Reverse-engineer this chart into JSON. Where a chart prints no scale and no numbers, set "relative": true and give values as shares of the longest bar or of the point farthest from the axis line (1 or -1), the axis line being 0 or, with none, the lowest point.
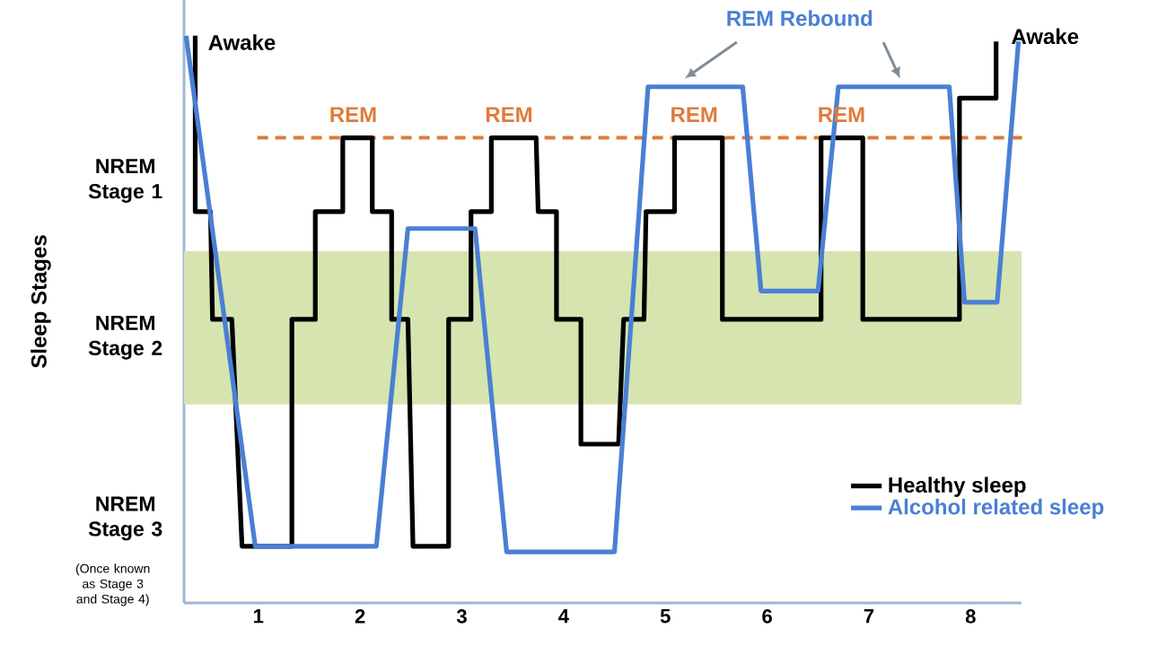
{
  "chart_data": {
    "type": "line",
    "relative": true,
    "xlim": [
      0.27,
      8.5
    ],
    "xticks": [
      1,
      2,
      3,
      4,
      5,
      6,
      7,
      8
    ],
    "legend": "bottom right",
    "series": [
      {
        "name": "Healthy sleep",
        "color": "#000000",
        "x": [
          0.38,
          0.38,
          0.53,
          0.55,
          0.74,
          0.84,
          1.33,
          1.33,
          1.56,
          1.56,
          1.83,
          1.83,
          2.12,
          2.12,
          2.31,
          2.31,
          2.47,
          2.52,
          2.87,
          2.87,
          3.09,
          3.09,
          3.29,
          3.29,
          3.73,
          3.75,
          3.93,
          3.93,
          4.17,
          4.17,
          4.54,
          4.59,
          4.79,
          4.81,
          5.09,
          5.09,
          5.56,
          5.56,
          6.53,
          6.53,
          6.94,
          6.94,
          7.89,
          7.89,
          8.25,
          8.25
        ],
        "values": [
          1.0,
          0.69,
          0.69,
          0.5,
          0.5,
          0.1,
          0.1,
          0.5,
          0.5,
          0.69,
          0.69,
          0.82,
          0.82,
          0.69,
          0.69,
          0.5,
          0.5,
          0.1,
          0.1,
          0.5,
          0.5,
          0.69,
          0.69,
          0.82,
          0.82,
          0.69,
          0.69,
          0.5,
          0.5,
          0.28,
          0.28,
          0.5,
          0.5,
          0.69,
          0.69,
          0.82,
          0.82,
          0.5,
          0.5,
          0.82,
          0.82,
          0.5,
          0.5,
          0.89,
          0.89,
          0.99
        ]
      },
      {
        "name": "Alcohol related sleep",
        "color": "#4a7fd4",
        "x": [
          0.29,
          0.97,
          2.16,
          2.47,
          3.13,
          3.44,
          4.5,
          4.83,
          5.76,
          5.94,
          6.5,
          6.7,
          7.79,
          7.94,
          8.26,
          8.47
        ],
        "values": [
          1.0,
          0.1,
          0.1,
          0.66,
          0.66,
          0.09,
          0.09,
          0.91,
          0.91,
          0.55,
          0.55,
          0.91,
          0.91,
          0.53,
          0.53,
          0.99
        ]
      }
    ],
    "ref_lines": [
      {
        "axis": "y",
        "value": 0.82,
        "color": "#e07b39",
        "line_style": "dashed"
      }
    ],
    "bands": [
      {
        "axis": "y",
        "from": 0.35,
        "to": 0.62,
        "color": "#d6e4b0"
      }
    ],
    "annotations": [
      "Awake",
      "Awake",
      "REM",
      "REM",
      "REM",
      "REM",
      "REM Rebound",
      "NREM Stage 1",
      "NREM Stage 2",
      "NREM Stage 3",
      "(Once known as Stage 3 and Stage 4)",
      "Sleep Stages"
    ]
  }
}
